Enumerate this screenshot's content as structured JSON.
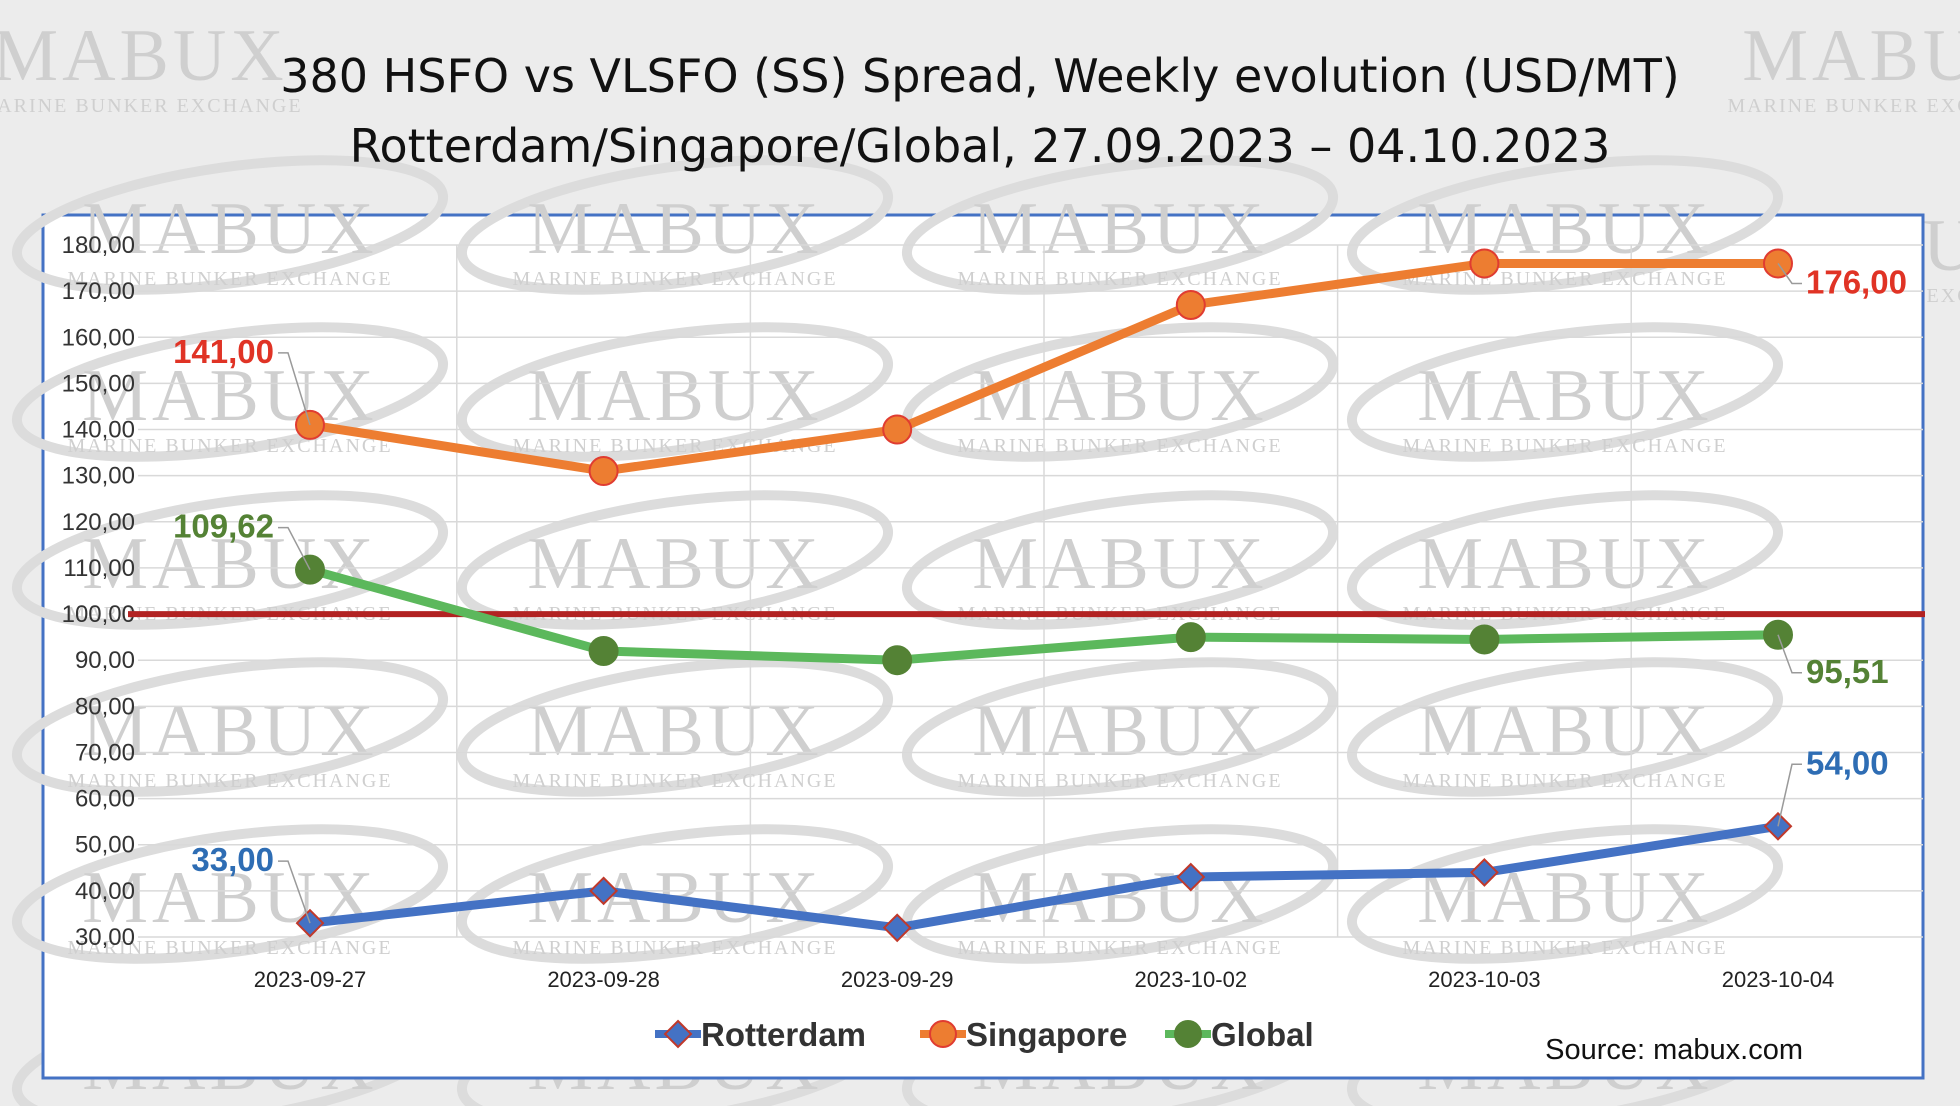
{
  "title_lines": [
    "380 HSFO vs VLSFO (SS) Spread, Weekly evolution (USD/MT)",
    "Rotterdam/Singapore/Global, 27.09.2023 – 04.10.2023"
  ],
  "source": "Source: mabux.com",
  "watermark": {
    "brand": "MABUX",
    "tagline": "MARINE BUNKER EXCHANGE"
  },
  "colors": {
    "background": "#ececec",
    "plot_background": "#ffffff",
    "frame": "#4472c4",
    "reference_line": "#b22222",
    "rotterdam": "#4472c4",
    "rotterdam_marker": "#c0392b",
    "singapore": "#ed7d31",
    "singapore_marker": "#e03c31",
    "global": "#5cb85c",
    "global_marker": "#548235",
    "label_rotterdam": "#2e6db4",
    "label_singapore": "#e03325",
    "label_global": "#548235"
  },
  "chart_data": {
    "type": "line",
    "title": "380 HSFO vs VLSFO (SS) Spread, Weekly evolution (USD/MT) Rotterdam/Singapore/Global, 27.09.2023 – 04.10.2023",
    "categories": [
      "2023-09-27",
      "2023-09-28",
      "2023-09-29",
      "2023-10-02",
      "2023-10-03",
      "2023-10-04"
    ],
    "ylim": [
      30,
      180
    ],
    "ytick_step": 10,
    "ytick_labels": [
      "30,00",
      "40,00",
      "50,00",
      "60,00",
      "70,00",
      "80,00",
      "90,00",
      "100,00",
      "110,00",
      "120,00",
      "130,00",
      "140,00",
      "150,00",
      "160,00",
      "170,00",
      "180,00"
    ],
    "grid": true,
    "reference_line": 100,
    "legend_position": "bottom",
    "series": [
      {
        "name": "Rotterdam",
        "values": [
          33.0,
          40.0,
          32.0,
          43.0,
          44.0,
          54.0
        ],
        "marker": "diamond",
        "annotations": [
          {
            "index": 0,
            "text": "33,00"
          },
          {
            "index": 5,
            "text": "54,00"
          }
        ]
      },
      {
        "name": "Singapore",
        "values": [
          141.0,
          131.0,
          140.0,
          167.0,
          176.0,
          176.0
        ],
        "marker": "circle",
        "annotations": [
          {
            "index": 0,
            "text": "141,00"
          },
          {
            "index": 5,
            "text": "176,00"
          }
        ]
      },
      {
        "name": "Global",
        "values": [
          109.62,
          92.0,
          90.0,
          95.0,
          94.5,
          95.51
        ],
        "marker": "circle",
        "annotations": [
          {
            "index": 0,
            "text": "109,62"
          },
          {
            "index": 5,
            "text": "95,51"
          }
        ]
      }
    ]
  }
}
